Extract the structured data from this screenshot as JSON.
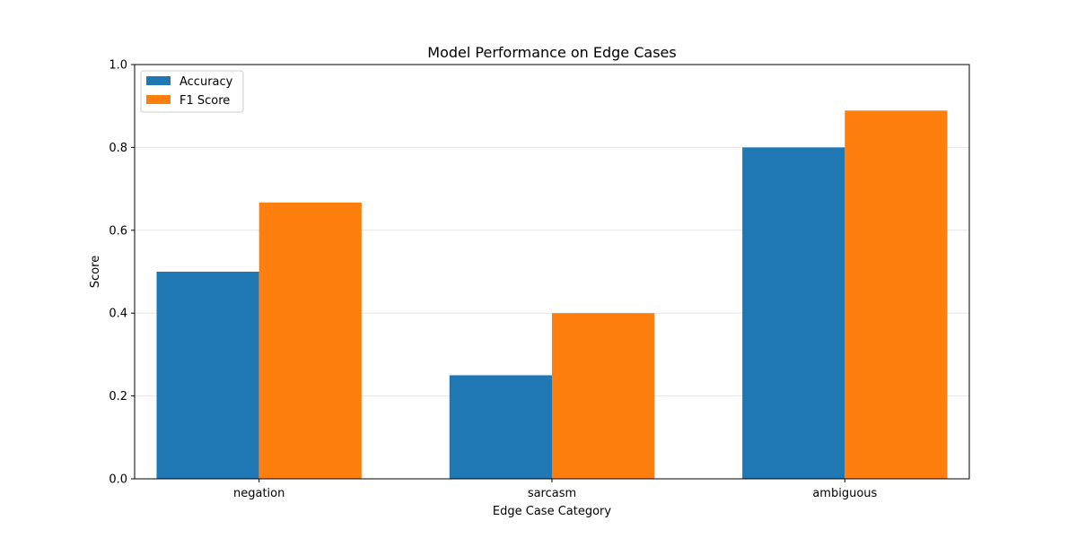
{
  "chart_data": {
    "type": "bar",
    "title": "Model Performance on Edge Cases",
    "xlabel": "Edge Case Category",
    "ylabel": "Score",
    "categories": [
      "negation",
      "sarcasm",
      "ambiguous"
    ],
    "series": [
      {
        "name": "Accuracy",
        "values": [
          0.5,
          0.25,
          0.8
        ],
        "color": "#1f77b4"
      },
      {
        "name": "F1 Score",
        "values": [
          0.667,
          0.4,
          0.889
        ],
        "color": "#ff7f0e"
      }
    ],
    "ylim": [
      0,
      1.0
    ],
    "yticks": [
      "0.0",
      "0.2",
      "0.4",
      "0.6",
      "0.8",
      "1.0"
    ],
    "grid": "y",
    "legend": "top-left"
  }
}
